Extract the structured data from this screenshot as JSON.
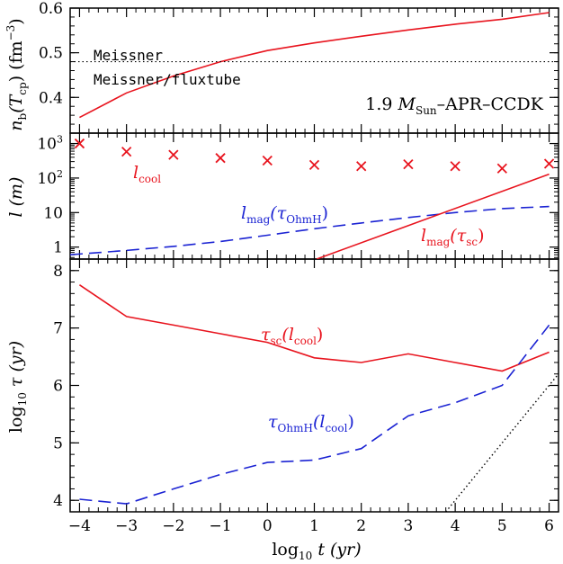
{
  "chart_data": [
    {
      "panel": "top",
      "type": "line",
      "ylabel": "n_b(T_cp) (fm^-3)",
      "ylim": [
        0.32,
        0.6
      ],
      "xlim": [
        -4.2,
        6.2
      ],
      "yticks": [
        0.4,
        0.5,
        0.6
      ],
      "series": [
        {
          "name": "",
          "color": "#e8141e",
          "style": "solid",
          "x": [
            -4,
            -3,
            -2,
            -1,
            0,
            1,
            2,
            3,
            4,
            5,
            6
          ],
          "y": [
            0.355,
            0.41,
            0.448,
            0.48,
            0.505,
            0.522,
            0.537,
            0.551,
            0.564,
            0.575,
            0.59
          ]
        }
      ],
      "reference_line": {
        "y": 0.48,
        "style": "dotted",
        "color": "#000000"
      },
      "annotations": {
        "meissner": "Meissner",
        "fluxtube": "Meissner/fluxtube",
        "model": "1.9 M_Sun–APR–CCDK"
      }
    },
    {
      "panel": "middle",
      "type": "scatter+line",
      "ylabel": "l (m)",
      "scale": "log",
      "ylim": [
        0.45,
        2000
      ],
      "yticks": [
        1,
        10,
        100,
        1000
      ],
      "series": [
        {
          "name": "l_cool",
          "marker": "x",
          "color": "#e8141e",
          "x": [
            -4,
            -3,
            -2,
            -1,
            0,
            1,
            2,
            3,
            4,
            5,
            6
          ],
          "y": [
            1000,
            580,
            470,
            380,
            320,
            240,
            220,
            250,
            220,
            190,
            260
          ]
        },
        {
          "name": "l_mag(τ_OhmH)",
          "color": "#1b23d3",
          "style": "dashed",
          "x": [
            -4.2,
            -3,
            -2,
            -1,
            0,
            1,
            2,
            3,
            4,
            5,
            6
          ],
          "y": [
            0.6,
            0.8,
            1.05,
            1.45,
            2.2,
            3.4,
            5,
            7.2,
            10,
            13,
            15
          ]
        },
        {
          "name": "l_mag(τ_sc)",
          "color": "#e8141e",
          "style": "solid",
          "x": [
            1.05,
            6
          ],
          "y": [
            0.45,
            130
          ]
        }
      ]
    },
    {
      "panel": "bottom",
      "type": "line",
      "xlabel": "log10 t (yr)",
      "ylabel": "log10 τ (yr)",
      "ylim": [
        3.8,
        8.2
      ],
      "xlim": [
        -4.2,
        6.2
      ],
      "xticks": [
        -4,
        -3,
        -2,
        -1,
        0,
        1,
        2,
        3,
        4,
        5,
        6
      ],
      "yticks": [
        4,
        5,
        6,
        7,
        8
      ],
      "series": [
        {
          "name": "τ_sc(l_cool)",
          "color": "#e8141e",
          "style": "solid",
          "x": [
            -4,
            -3,
            -2,
            -1,
            0,
            1,
            2,
            3,
            4,
            5,
            6
          ],
          "y": [
            7.75,
            7.2,
            7.05,
            6.9,
            6.75,
            6.48,
            6.4,
            6.55,
            6.4,
            6.25,
            6.58
          ]
        },
        {
          "name": "τ_OhmH(l_cool)",
          "color": "#1b23d3",
          "style": "dashed",
          "x": [
            -4,
            -3,
            -2,
            -1,
            0,
            1,
            2,
            3,
            4,
            5,
            6
          ],
          "y": [
            4.02,
            3.94,
            4.2,
            4.45,
            4.66,
            4.7,
            4.9,
            5.47,
            5.7,
            6.0,
            7.05
          ]
        },
        {
          "name": "",
          "color": "#000000",
          "style": "dotted",
          "x": [
            3.8,
            6.2
          ],
          "y": [
            3.8,
            6.2
          ]
        }
      ]
    }
  ],
  "labels": {
    "top_ylabel_main": "n",
    "top_ylabel_sub": "b",
    "top_ylabel_paren_open": "(T",
    "top_ylabel_sub2": "cp",
    "top_ylabel_rest": ")  (fm",
    "top_ylabel_sup": "−3",
    "top_ylabel_close": ")",
    "mid_ylabel": "l  (m)",
    "bottom_ylabel_log": "log",
    "bottom_ylabel_sub": "10",
    "bottom_ylabel_rest": " τ  (yr)",
    "xlabel_log": "log",
    "xlabel_sub": "10",
    "xlabel_rest": " t  (yr)",
    "meissner": "Meissner",
    "fluxtube": "Meissner/fluxtube",
    "model_prefix": "1.9 ",
    "model_M": "M",
    "model_sub": "Sun",
    "model_rest": "–APR–CCDK",
    "lcool_l": "l",
    "lcool_sub": "cool",
    "lmag_ohm_l": "l",
    "lmag_ohm_sub": "mag",
    "lmag_ohm_paren": "(τ",
    "lmag_ohm_sub2": "OhmH",
    "lmag_ohm_close": ")",
    "lmag_sc_l": "l",
    "lmag_sc_sub": "mag",
    "lmag_sc_paren": "(τ",
    "lmag_sc_sub2": "sc",
    "lmag_sc_close": ")",
    "tausc_tau": "τ",
    "tausc_sub": "sc",
    "tausc_paren": "(l",
    "tausc_sub2": "cool",
    "tausc_close": ")",
    "tauohm_tau": "τ",
    "tauohm_sub": "OhmH",
    "tauohm_paren": "(l",
    "tauohm_sub2": "cool",
    "tauohm_close": ")"
  },
  "tick_labels": {
    "top_y": [
      "0.4",
      "0.5",
      "0.6"
    ],
    "mid_y": [
      "1",
      "10",
      "10",
      "2",
      "10",
      "3"
    ],
    "bottom_y": [
      "4",
      "5",
      "6",
      "7",
      "8"
    ],
    "x": [
      "−4",
      "−3",
      "−2",
      "−1",
      "0",
      "1",
      "2",
      "3",
      "4",
      "5",
      "6"
    ]
  }
}
